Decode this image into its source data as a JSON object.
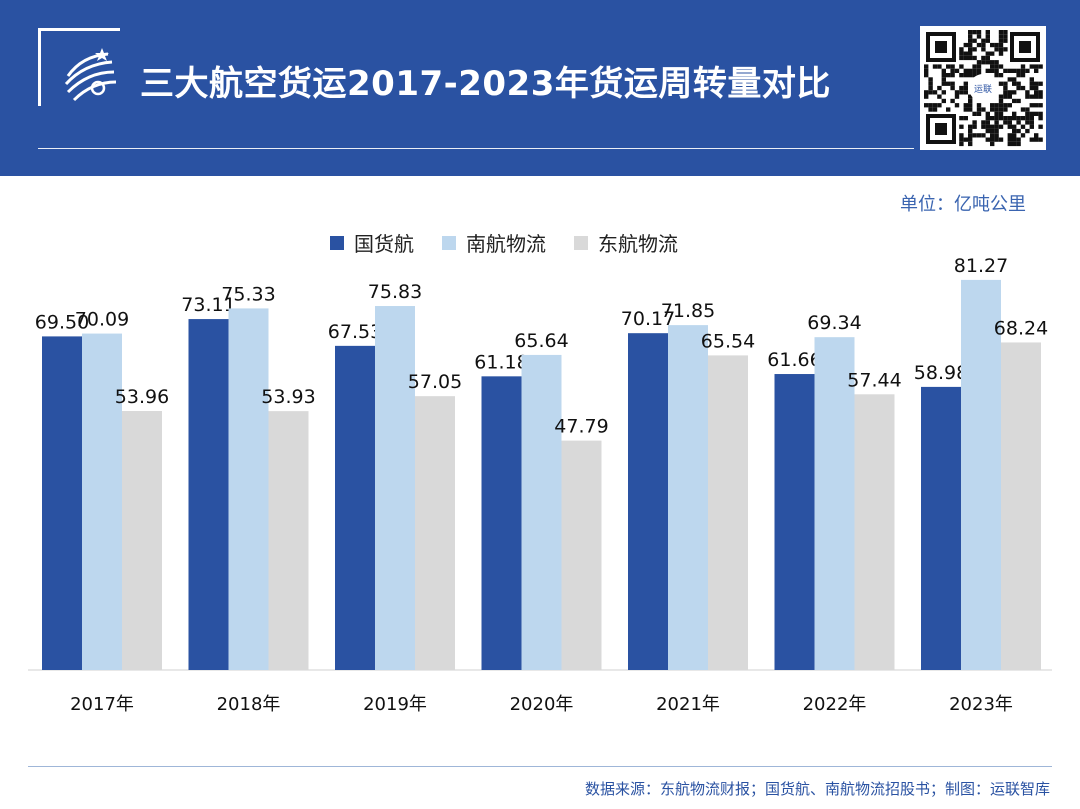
{
  "header": {
    "title": "三大航空货运2017-2023年货运周转量对比",
    "brand_color": "#2a52a2",
    "qr_logo_text": "运联"
  },
  "unit_label": "单位：亿吨公里",
  "source_text": "数据来源：东航物流财报；国货航、南航物流招股书；制图：运联智库",
  "chart_data": {
    "type": "bar",
    "categories": [
      "2017年",
      "2018年",
      "2019年",
      "2020年",
      "2021年",
      "2022年",
      "2023年"
    ],
    "series": [
      {
        "name": "国货航",
        "color": "#2a52a2",
        "values": [
          69.5,
          73.11,
          67.53,
          61.18,
          70.17,
          61.66,
          58.98
        ]
      },
      {
        "name": "南航物流",
        "color": "#bdd7ee",
        "values": [
          70.09,
          75.33,
          75.83,
          65.64,
          71.85,
          69.34,
          81.27
        ]
      },
      {
        "name": "东航物流",
        "color": "#d9d9d9",
        "values": [
          53.96,
          53.93,
          57.05,
          47.79,
          65.54,
          57.44,
          68.24
        ]
      }
    ],
    "ylim": [
      0,
      100
    ],
    "grid": false,
    "legend_position": "top-center"
  }
}
